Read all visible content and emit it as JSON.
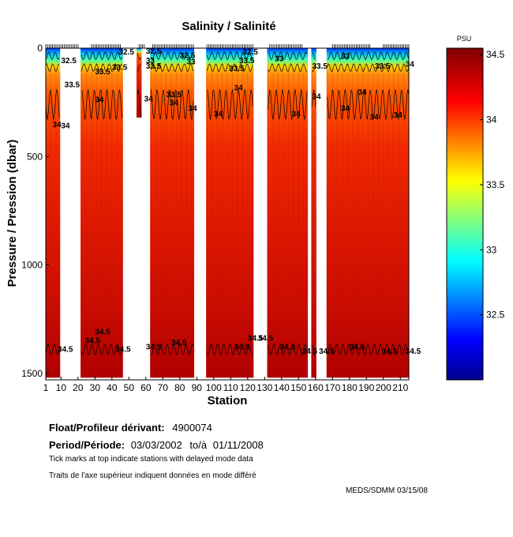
{
  "chart_data": {
    "type": "heatmap",
    "title": "Salinity / Salinité",
    "xlabel": "Station",
    "ylabel": "Pressure / Pression (dbar)",
    "xlim": [
      1,
      215
    ],
    "ylim": [
      0,
      1530
    ],
    "x_ticks": [
      1,
      10,
      20,
      30,
      40,
      50,
      60,
      70,
      80,
      90,
      100,
      110,
      120,
      130,
      140,
      150,
      160,
      170,
      180,
      190,
      200,
      210
    ],
    "y_ticks": [
      0,
      500,
      1000,
      1500
    ],
    "colorbar": {
      "label": "PSU",
      "range": [
        32.0,
        34.55
      ],
      "ticks": [
        32.5,
        33,
        33.5,
        34,
        34.5
      ]
    },
    "station_groups": [
      {
        "start": 1,
        "end": 9,
        "depth_max": 1520
      },
      {
        "start": 22,
        "end": 46,
        "depth_max": 1520
      },
      {
        "start": 55,
        "end": 57,
        "depth_max": 320
      },
      {
        "start": 63,
        "end": 88,
        "depth_max": 1520
      },
      {
        "start": 96,
        "end": 123,
        "depth_max": 1520
      },
      {
        "start": 132,
        "end": 155,
        "depth_max": 1520
      },
      {
        "start": 158,
        "end": 160,
        "depth_max": 1520
      },
      {
        "start": 167,
        "end": 215,
        "depth_max": 1520
      }
    ],
    "contour_levels": [
      32.5,
      33,
      33.5,
      34,
      34.5
    ],
    "contour_labels": [
      {
        "text": "32.5",
        "station": 10,
        "pressure": 70
      },
      {
        "text": "33.5",
        "station": 12,
        "pressure": 180
      },
      {
        "text": "34",
        "station": 5,
        "pressure": 365
      },
      {
        "text": "34",
        "station": 10,
        "pressure": 370
      },
      {
        "text": "34.5",
        "station": 8,
        "pressure": 1400
      },
      {
        "text": "34.5",
        "station": 24,
        "pressure": 1360
      },
      {
        "text": "34.5",
        "station": 30,
        "pressure": 1320
      },
      {
        "text": "34.5",
        "station": 42,
        "pressure": 1400
      },
      {
        "text": "33.5",
        "station": 30,
        "pressure": 120
      },
      {
        "text": "34",
        "station": 30,
        "pressure": 250
      },
      {
        "text": "33.5",
        "station": 40,
        "pressure": 100
      },
      {
        "text": "32.5",
        "station": 44,
        "pressure": 30
      },
      {
        "text": "32.5",
        "station": 60,
        "pressure": 25
      },
      {
        "text": "33",
        "station": 60,
        "pressure": 70
      },
      {
        "text": "33.5",
        "station": 60,
        "pressure": 95
      },
      {
        "text": "34",
        "station": 59,
        "pressure": 245
      },
      {
        "text": "33.5",
        "station": 72,
        "pressure": 225
      },
      {
        "text": "34",
        "station": 74,
        "pressure": 265
      },
      {
        "text": "34",
        "station": 85,
        "pressure": 290
      },
      {
        "text": "32.5",
        "station": 80,
        "pressure": 45
      },
      {
        "text": "33",
        "station": 84,
        "pressure": 75
      },
      {
        "text": "34.5",
        "station": 60,
        "pressure": 1390
      },
      {
        "text": "34.5",
        "station": 75,
        "pressure": 1370
      },
      {
        "text": "32.5",
        "station": 117,
        "pressure": 30
      },
      {
        "text": "33.5",
        "station": 109,
        "pressure": 105
      },
      {
        "text": "34",
        "station": 112,
        "pressure": 195
      },
      {
        "text": "34",
        "station": 100,
        "pressure": 315
      },
      {
        "text": "34.5",
        "station": 112,
        "pressure": 1390
      },
      {
        "text": "34.5",
        "station": 120,
        "pressure": 1350
      },
      {
        "text": "34.5",
        "station": 126,
        "pressure": 1350
      },
      {
        "text": "33.5",
        "station": 115,
        "pressure": 70
      },
      {
        "text": "33",
        "station": 136,
        "pressure": 60
      },
      {
        "text": "34",
        "station": 146,
        "pressure": 315
      },
      {
        "text": "34",
        "station": 158,
        "pressure": 235
      },
      {
        "text": "33.5",
        "station": 158,
        "pressure": 95
      },
      {
        "text": "34.5",
        "station": 139,
        "pressure": 1390
      },
      {
        "text": "34.5",
        "station": 152,
        "pressure": 1410
      },
      {
        "text": "34.5",
        "station": 162,
        "pressure": 1410
      },
      {
        "text": "33",
        "station": 175,
        "pressure": 50
      },
      {
        "text": "33.5",
        "station": 195,
        "pressure": 95
      },
      {
        "text": "34",
        "station": 175,
        "pressure": 290
      },
      {
        "text": "34",
        "station": 185,
        "pressure": 215
      },
      {
        "text": "34",
        "station": 192,
        "pressure": 330
      },
      {
        "text": "34",
        "station": 206,
        "pressure": 320
      },
      {
        "text": "34",
        "station": 213,
        "pressure": 85
      },
      {
        "text": "34.5",
        "station": 180,
        "pressure": 1390
      },
      {
        "text": "34.5",
        "station": 199,
        "pressure": 1410
      },
      {
        "text": "34.5",
        "station": 213,
        "pressure": 1410
      }
    ],
    "delayed_mode_tick_ranges": [
      [
        1,
        20
      ],
      [
        28,
        45
      ],
      [
        56,
        59
      ],
      [
        64,
        88
      ],
      [
        96,
        123
      ],
      [
        133,
        152
      ],
      [
        170,
        192
      ],
      [
        200,
        215
      ]
    ]
  },
  "info": {
    "float_label": "Float/Profileur dérivant:",
    "float_value": "4900074",
    "period_label": "Period/Période:",
    "period_from": "03/03/2002",
    "period_sep": "to/à",
    "period_to": "01/11/2008",
    "note_en": "Tick marks at top indicate stations with delayed mode data",
    "note_fr": "Traits de l'axe supérieur indiquent données en mode différé",
    "credit": "MEDS/SDMM  03/15/08"
  }
}
